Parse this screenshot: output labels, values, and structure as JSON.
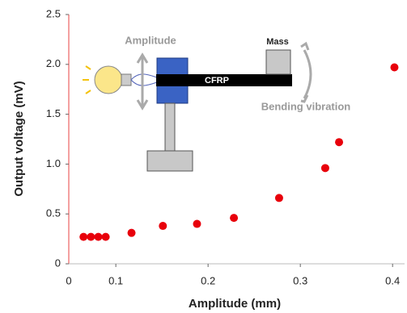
{
  "chart_data": {
    "type": "scatter",
    "x_label": "Amplitude (mm)",
    "y_label": "Output voltage (mV)",
    "x_origin_label": "0",
    "xlim": [
      0.049,
      0.413
    ],
    "xticks": [
      0.1,
      0.2,
      0.3,
      0.4
    ],
    "ylim": [
      0,
      2.5
    ],
    "yticks": [
      0,
      0.5,
      {
        "value": 1,
        "label": "1.0"
      },
      1.5,
      {
        "value": 2,
        "label": "2.0"
      },
      2.5
    ],
    "series": [
      {
        "color": "#e8000b",
        "x": [
          0.065,
          0.073,
          0.081,
          0.089,
          0.117,
          0.151,
          0.188,
          0.228,
          0.277,
          0.327,
          0.342,
          0.402
        ],
        "values": [
          0.27,
          0.27,
          0.27,
          0.27,
          0.31,
          0.38,
          0.4,
          0.46,
          0.66,
          0.96,
          1.22,
          1.97
        ]
      }
    ],
    "annotations": {
      "amplitude": "Amplitude",
      "mass": "Mass",
      "beam": "CFRP",
      "bending": "Bending vibration"
    }
  }
}
